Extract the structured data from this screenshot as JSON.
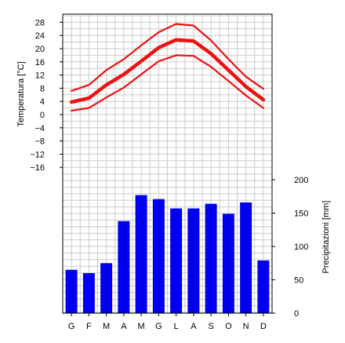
{
  "chart_data": {
    "type": "climate-diagram",
    "categories": [
      "G",
      "F",
      "M",
      "A",
      "M",
      "G",
      "L",
      "A",
      "S",
      "O",
      "N",
      "D"
    ],
    "temperature_axis": {
      "label": "Temperatura [°C]",
      "ticks": [
        28,
        24,
        20,
        16,
        12,
        8,
        4,
        0,
        -4,
        -8,
        -12,
        -16
      ],
      "range": [
        -16,
        30
      ]
    },
    "precipitation_axis": {
      "label": "Precipitazioni [mm]",
      "ticks": [
        200,
        150,
        100,
        50,
        0
      ],
      "range": [
        0,
        200
      ]
    },
    "temperature_series": [
      {
        "role": "max",
        "values": [
          7.2,
          9.0,
          13.5,
          16.8,
          21.0,
          25.0,
          27.5,
          27.0,
          22.5,
          16.8,
          11.5,
          7.8
        ]
      },
      {
        "role": "mean",
        "values": [
          3.8,
          5.0,
          9.0,
          12.2,
          16.2,
          20.3,
          22.7,
          22.3,
          18.5,
          13.5,
          8.5,
          4.5
        ]
      },
      {
        "role": "min",
        "values": [
          1.2,
          2.0,
          5.2,
          8.2,
          12.2,
          16.2,
          18.0,
          17.8,
          14.5,
          10.2,
          5.8,
          2.0
        ]
      }
    ],
    "precipitation_series": {
      "values": [
        65,
        60,
        75,
        138,
        177,
        171,
        157,
        157,
        164,
        149,
        166,
        79
      ]
    },
    "colors": {
      "temperature": "#ee1111",
      "precipitation": "#0000ee",
      "grid": "#cccccc",
      "frame": "#000000"
    },
    "grid": true
  }
}
